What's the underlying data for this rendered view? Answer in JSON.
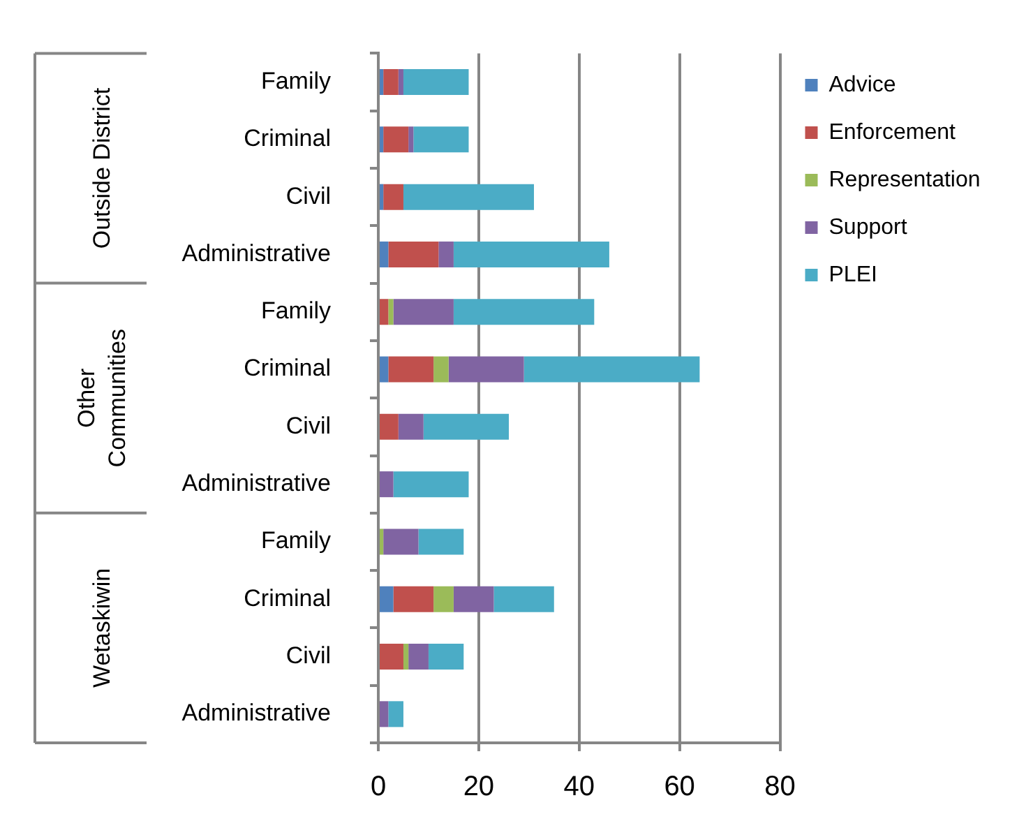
{
  "chart_data": {
    "type": "bar",
    "orientation": "horizontal",
    "stacked": true,
    "categories": [
      "Family",
      "Criminal",
      "Civil",
      "Administrative",
      "Family",
      "Criminal",
      "Civil",
      "Administrative",
      "Family",
      "Criminal",
      "Civil",
      "Administrative"
    ],
    "series": [
      {
        "name": "Advice",
        "color": "#4f81bd",
        "values": [
          1,
          1,
          1,
          2,
          null,
          2,
          null,
          null,
          null,
          3,
          null,
          null
        ]
      },
      {
        "name": "Enforcement",
        "color": "#c0504d",
        "values": [
          3,
          5,
          4,
          10,
          2,
          9,
          4,
          null,
          null,
          8,
          5,
          null
        ]
      },
      {
        "name": "Representation",
        "color": "#9bbb59",
        "values": [
          null,
          null,
          null,
          null,
          1,
          3,
          null,
          null,
          1,
          4,
          1,
          null
        ]
      },
      {
        "name": "Support",
        "color": "#8064a2",
        "values": [
          1,
          1,
          null,
          3,
          12,
          15,
          5,
          3,
          7,
          8,
          4,
          2
        ]
      },
      {
        "name": "PLEI",
        "color": "#4bacc6",
        "values": [
          13,
          11,
          26,
          31,
          28,
          35,
          17,
          15,
          9,
          12,
          7,
          3
        ]
      }
    ],
    "xlim": [
      0,
      80
    ],
    "xticks": [
      0,
      20,
      40,
      60,
      80
    ],
    "grid": "x",
    "legend": "right",
    "annotations": [
      "Outside District",
      "Other Communities",
      "Wetaskiwin"
    ]
  }
}
